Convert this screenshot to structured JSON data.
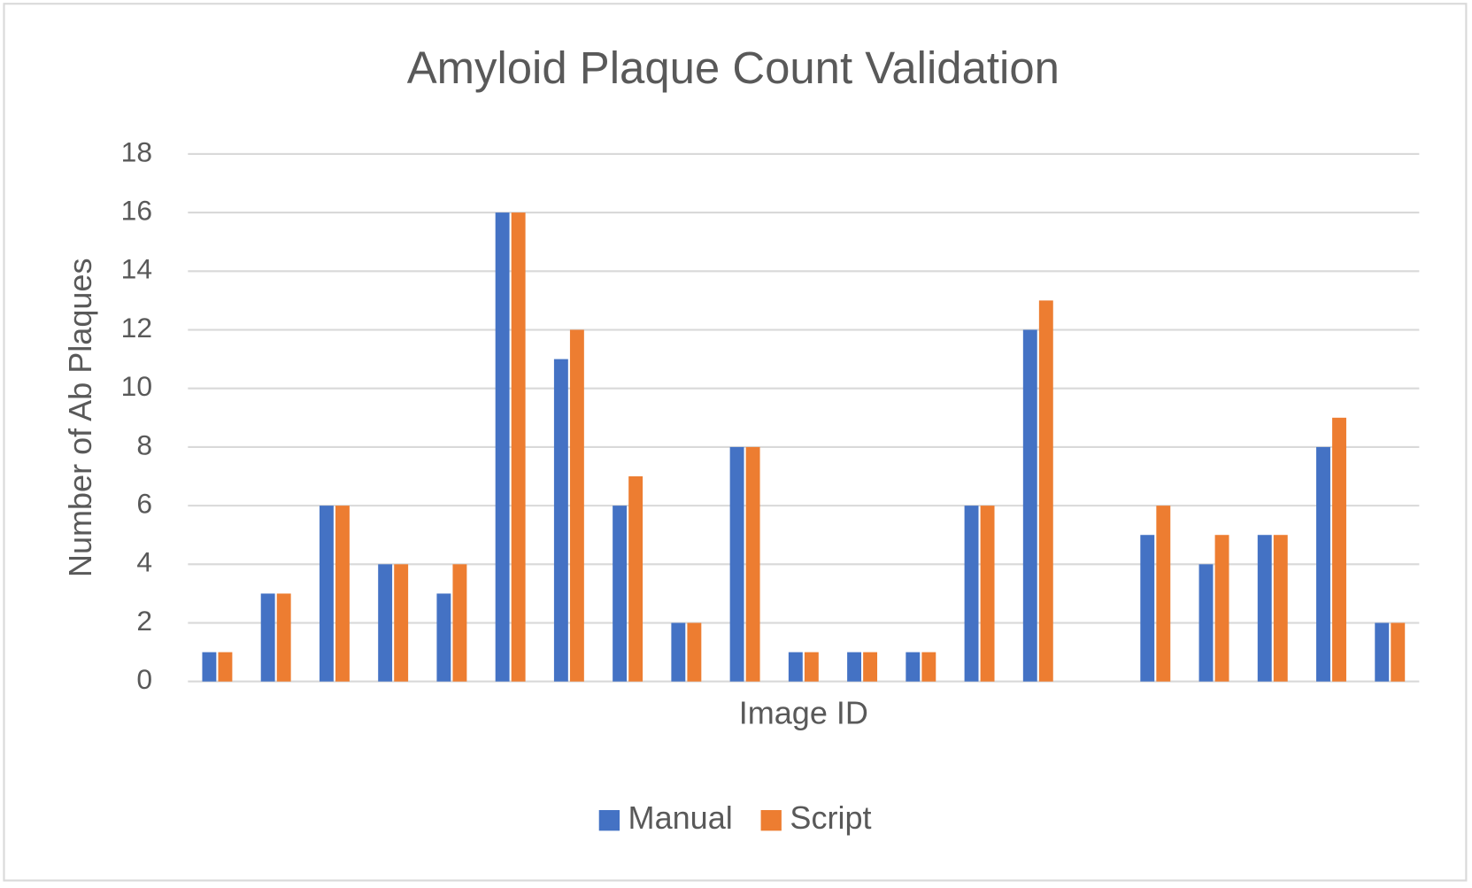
{
  "chart_data": {
    "type": "bar",
    "title": "Amyloid Plaque Count Validation",
    "xlabel": "Image ID",
    "ylabel": "Number of Ab Plaques",
    "categories": [
      null,
      null,
      null,
      null,
      null,
      null,
      null,
      null,
      null,
      null,
      null,
      null,
      null,
      null,
      null,
      null,
      null,
      null,
      null,
      null,
      null
    ],
    "series": [
      {
        "name": "Manual",
        "color": "#4472c4",
        "values": [
          1,
          3,
          6,
          4,
          3,
          16,
          11,
          6,
          2,
          8,
          1,
          1,
          1,
          6,
          12,
          null,
          5,
          4,
          5,
          8,
          2
        ]
      },
      {
        "name": "Script",
        "color": "#ed7d31",
        "values": [
          1,
          3,
          6,
          4,
          4,
          16,
          12,
          7,
          2,
          8,
          1,
          1,
          1,
          6,
          13,
          null,
          6,
          5,
          5,
          9,
          2
        ]
      }
    ],
    "ylim": [
      0,
      18
    ],
    "yticks": [
      0,
      2,
      4,
      6,
      8,
      10,
      12,
      14,
      16,
      18
    ],
    "grid": true,
    "legend": "bottom"
  }
}
